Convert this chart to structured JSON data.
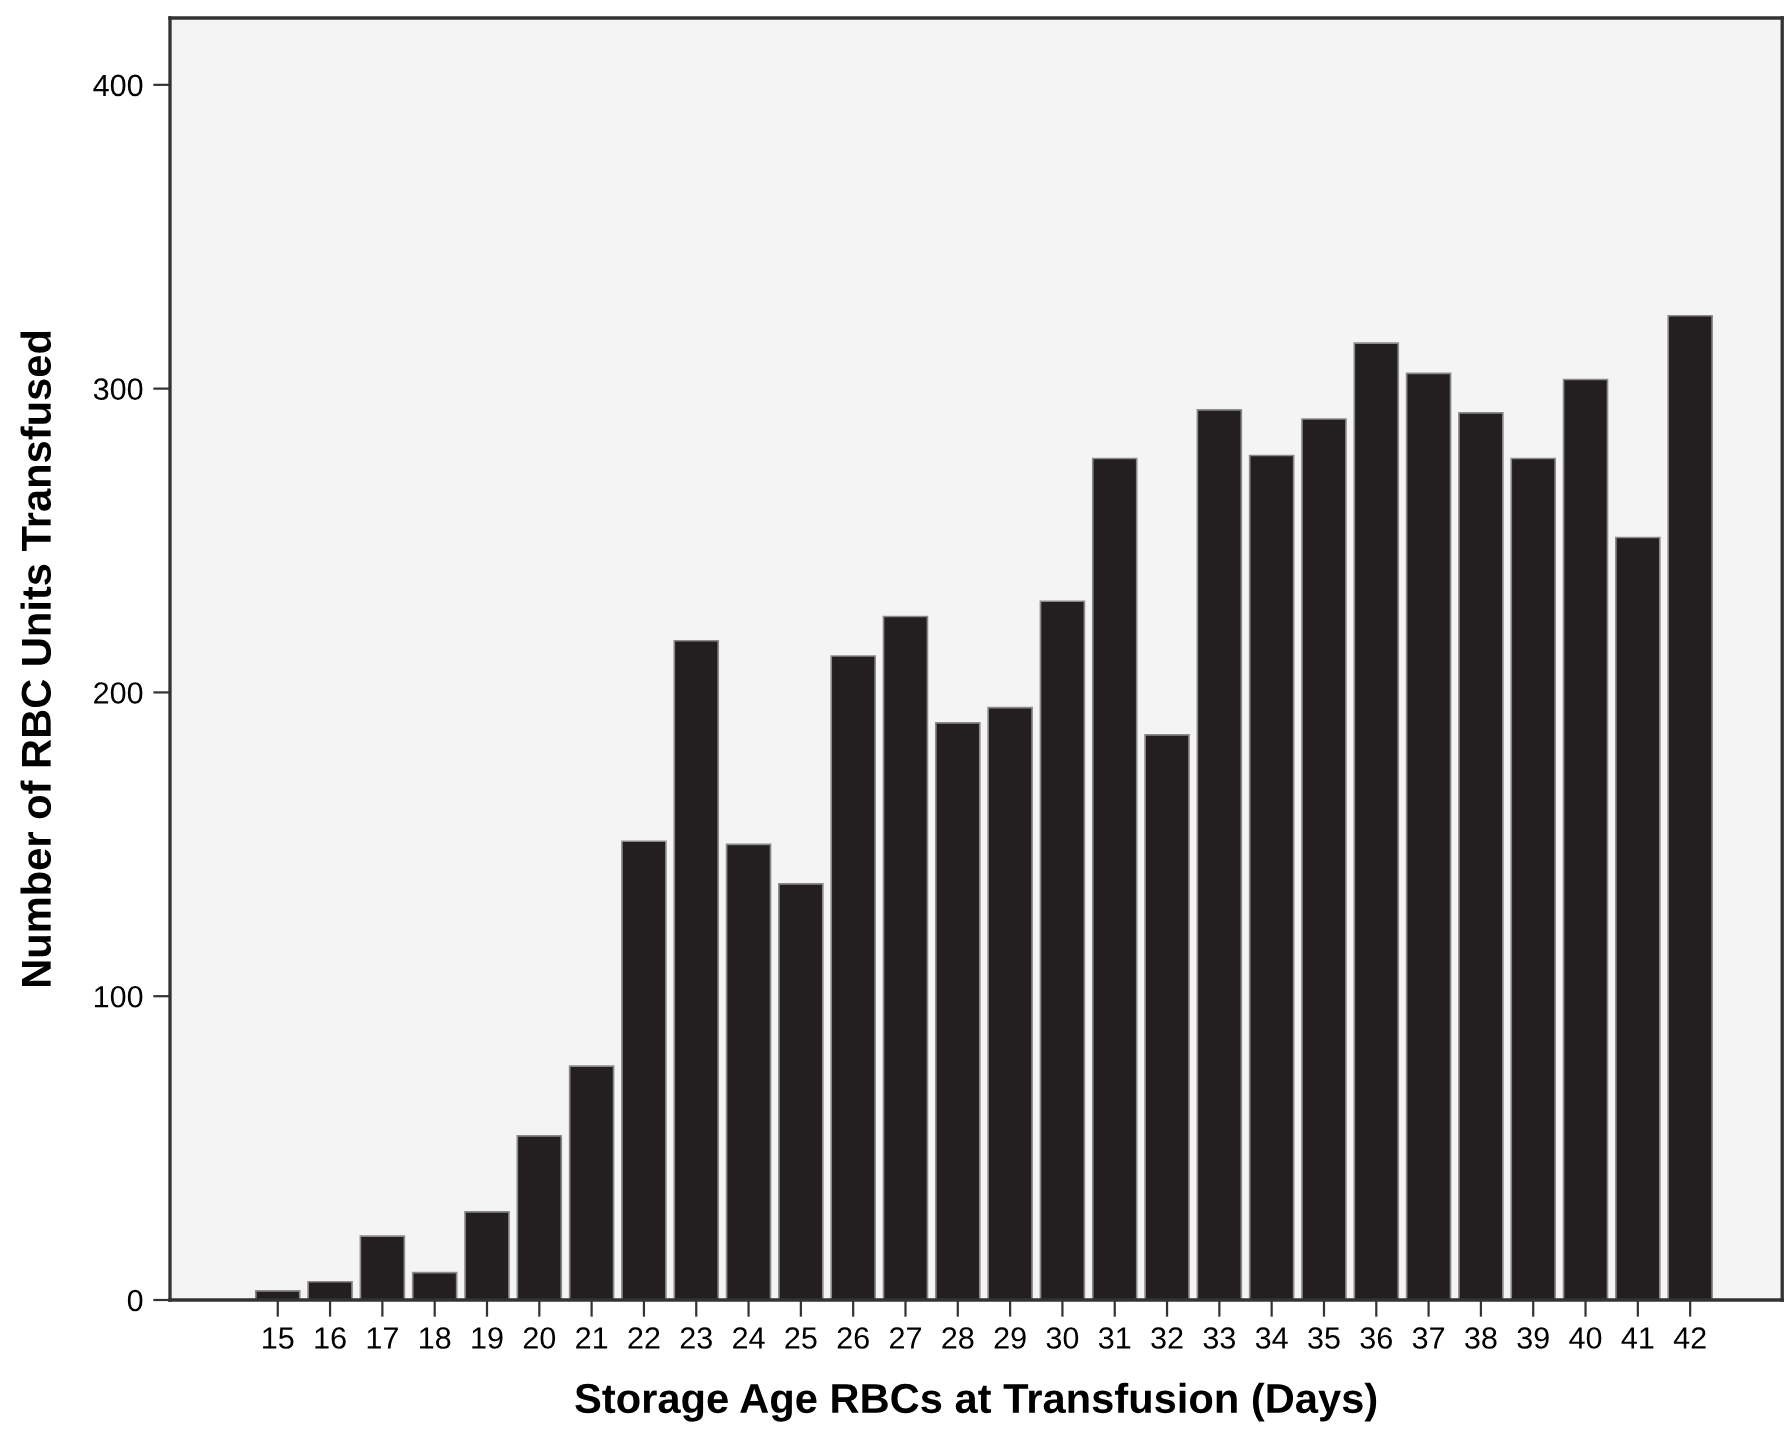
{
  "chart_data": {
    "type": "bar",
    "xlabel": "Storage Age RBCs at Transfusion (Days)",
    "ylabel": "Number of RBC Units Transfused",
    "categories": [
      "15",
      "16",
      "17",
      "18",
      "19",
      "20",
      "21",
      "22",
      "23",
      "24",
      "25",
      "26",
      "27",
      "28",
      "29",
      "30",
      "31",
      "32",
      "33",
      "34",
      "35",
      "36",
      "37",
      "38",
      "39",
      "40",
      "41",
      "42"
    ],
    "values": [
      3,
      6,
      21,
      9,
      29,
      54,
      77,
      151,
      217,
      150,
      137,
      212,
      225,
      190,
      195,
      230,
      277,
      186,
      293,
      278,
      290,
      315,
      305,
      292,
      277,
      303,
      251,
      324
    ],
    "color": "#231f20",
    "ylim": [
      0,
      422
    ],
    "yticks": [
      0,
      100,
      200,
      300,
      400
    ],
    "grid": false,
    "legend": false
  }
}
